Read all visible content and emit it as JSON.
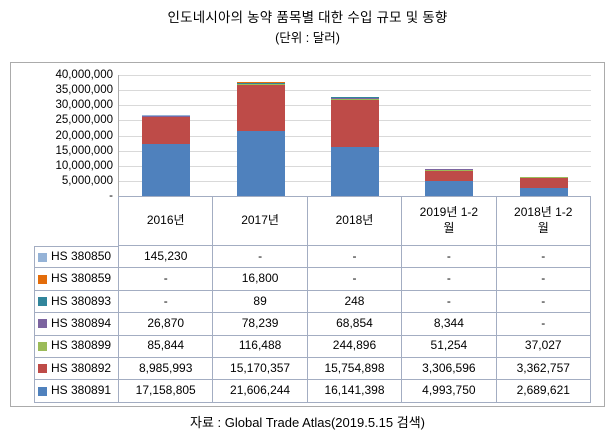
{
  "title": "인도네시아의 농약 품목별 대한 수입 규모 및 동향",
  "subtitle": "(단위 : 달러)",
  "source": "자료 : Global Trade Atlas(2019.5.15 검색)",
  "chart_data": {
    "type": "bar",
    "stacked": true,
    "title": "인도네시아의 농약 품목별 대한 수입 규모 및 동향",
    "unit_label": "(단위 : 달러)",
    "categories": [
      "2016년",
      "2017년",
      "2018년",
      "2019년 1-2월",
      "2018년 1-2월"
    ],
    "series": [
      {
        "name": "HS 380850",
        "color": "#95B3D7",
        "values": [
          145230,
          0,
          0,
          0,
          0
        ],
        "display": [
          "145,230",
          "-",
          "-",
          "-",
          "-"
        ]
      },
      {
        "name": "HS 380859",
        "color": "#E36C0A",
        "values": [
          0,
          16800,
          0,
          0,
          0
        ],
        "display": [
          "-",
          "16,800",
          "-",
          "-",
          "-"
        ]
      },
      {
        "name": "HS 380893",
        "color": "#31859B",
        "values": [
          0,
          89,
          248,
          0,
          0
        ],
        "display": [
          "-",
          "89",
          "248",
          "-",
          "-"
        ]
      },
      {
        "name": "HS 380894",
        "color": "#7C64A0",
        "values": [
          26870,
          78239,
          68854,
          8344,
          0
        ],
        "display": [
          "26,870",
          "78,239",
          "68,854",
          "8,344",
          "-"
        ]
      },
      {
        "name": "HS 380899",
        "color": "#9BBB59",
        "values": [
          85844,
          116488,
          244896,
          51254,
          37027
        ],
        "display": [
          "85,844",
          "116,488",
          "244,896",
          "51,254",
          "37,027"
        ]
      },
      {
        "name": "HS 380892",
        "color": "#BE4B48",
        "values": [
          8985993,
          15170357,
          15754898,
          3306596,
          3362757
        ],
        "display": [
          "8,985,993",
          "15,170,357",
          "15,754,898",
          "3,306,596",
          "3,362,757"
        ]
      },
      {
        "name": "HS 380891",
        "color": "#4F81BD",
        "values": [
          17158805,
          21606244,
          16141398,
          4993750,
          2689621
        ],
        "display": [
          "17,158,805",
          "21,606,244",
          "16,141,398",
          "4,993,750",
          "2,689,621"
        ]
      }
    ],
    "stack_order_bottom_to_top": [
      "HS 380891",
      "HS 380892",
      "HS 380899",
      "HS 380894",
      "HS 380893",
      "HS 380859",
      "HS 380850"
    ],
    "y_axis": {
      "min": 0,
      "max": 40000000,
      "step": 5000000,
      "tick_labels": [
        "40,000,000",
        "35,000,000",
        "30,000,000",
        "25,000,000",
        "20,000,000",
        "15,000,000",
        "10,000,000",
        "5,000,000",
        "-"
      ]
    },
    "legend_position": "table-left",
    "grid": true
  }
}
